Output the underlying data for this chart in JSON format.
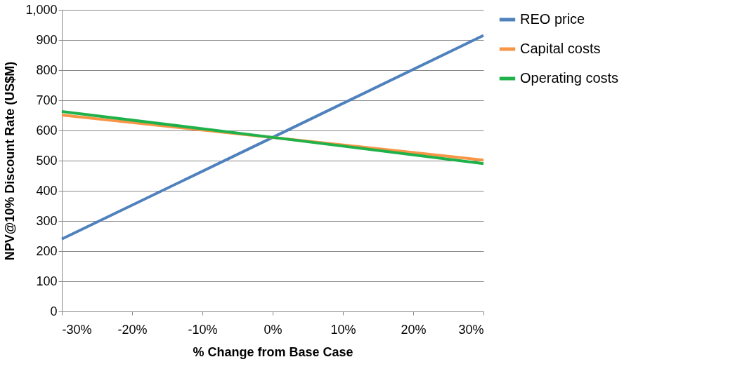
{
  "chart_data": {
    "type": "line",
    "xlabel": "% Change from Base Case",
    "ylabel": "NPV@10% Discount Rate (US$M)",
    "x": [
      -30,
      0,
      30
    ],
    "series": [
      {
        "name": "REO price",
        "color": "#4f81bd",
        "values": [
          240,
          577,
          915
        ]
      },
      {
        "name": "Capital costs",
        "color": "#f79646",
        "values": [
          651,
          577,
          502
        ]
      },
      {
        "name": "Operating costs",
        "color": "#1fb24a",
        "values": [
          663,
          577,
          490
        ]
      }
    ],
    "xlim": [
      -30,
      30
    ],
    "xticks": [
      {
        "value": -30,
        "label": "-30%"
      },
      {
        "value": -20,
        "label": "-20%"
      },
      {
        "value": -10,
        "label": "-10%"
      },
      {
        "value": 0,
        "label": "0%"
      },
      {
        "value": 10,
        "label": "10%"
      },
      {
        "value": 20,
        "label": "20%"
      },
      {
        "value": 30,
        "label": "30%"
      }
    ],
    "ylim": [
      0,
      1000
    ],
    "yticks": [
      0,
      100,
      200,
      300,
      400,
      500,
      600,
      700,
      800,
      900,
      {
        "value": 1000,
        "label": "1,000"
      }
    ],
    "grid": "y",
    "legend": "right",
    "marker": "none",
    "line_style": "solid"
  }
}
